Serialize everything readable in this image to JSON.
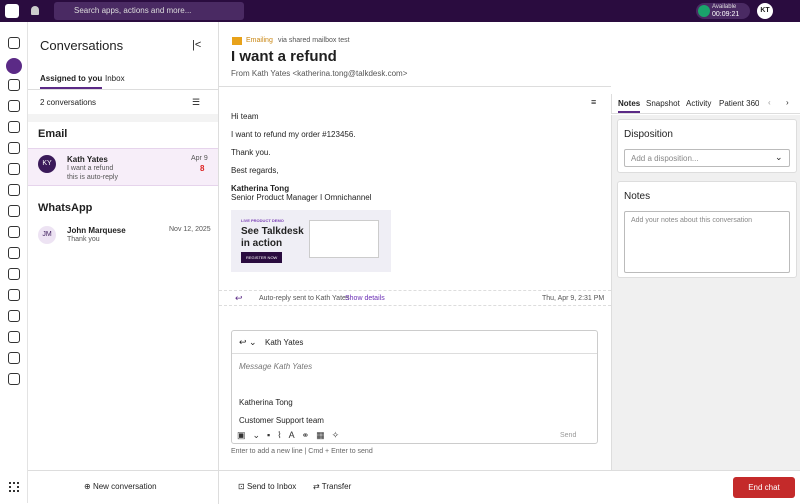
{
  "topbar": {
    "search": "Search apps, actions and more...",
    "status": "Available",
    "timer": "00:09:21",
    "avatar": "KT"
  },
  "conversations": {
    "title": "Conversations",
    "tabs": [
      "Assigned to you",
      "Inbox"
    ],
    "count": "2 conversations",
    "sections": [
      {
        "title": "Email",
        "items": [
          {
            "avatar": "KY",
            "name": "Kath Yates",
            "date": "Apr 9",
            "preview": "I want a refund",
            "preview2": "this is auto-reply",
            "badge": "8"
          }
        ]
      },
      {
        "title": "WhatsApp",
        "items": [
          {
            "avatar": "JM",
            "name": "John Marquese",
            "date": "Nov 12, 2025",
            "preview": "Thank you"
          }
        ]
      }
    ],
    "new_button": "New conversation"
  },
  "header": {
    "channel": "Emailing",
    "via": "via shared mailbox test",
    "title": "I want a refund",
    "from": "From Kath Yates <katherina.tong@talkdesk.com>"
  },
  "email": {
    "lines": [
      "Hi team",
      "I want to refund my order #123456.",
      "Thank you.",
      "Best regards,"
    ],
    "signature_name": "Katherina Tong",
    "signature_title": "Senior Product Manager I Omnichannel",
    "banner": {
      "tag": "LIVE PRODUCT DEMO",
      "headline1": "See Talkdesk",
      "headline2": "in action",
      "cta": "REGISTER NOW"
    }
  },
  "auto_reply": {
    "text": "Auto-reply sent to Kath Yates",
    "link": "Show details",
    "time": "Thu, Apr 9, 2:31 PM"
  },
  "composer": {
    "recipient": "Kath Yates",
    "placeholder": "Message Kath Yates",
    "signature_name": "Katherina Tong",
    "signature_team": "Customer Support team",
    "send": "Send",
    "hint": "Enter to add a new line | Cmd + Enter to send"
  },
  "footer": {
    "send_to_inbox": "Send to Inbox",
    "transfer": "Transfer",
    "end_chat": "End chat"
  },
  "right_panel": {
    "tabs": [
      "Notes",
      "Snapshot",
      "Activity",
      "Patient 360"
    ],
    "disposition_title": "Disposition",
    "disposition_placeholder": "Add a disposition...",
    "notes_title": "Notes",
    "notes_placeholder": "Add your notes about this conversation"
  }
}
